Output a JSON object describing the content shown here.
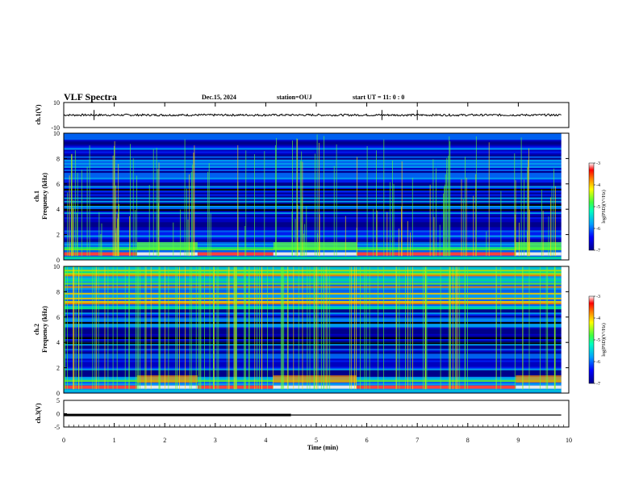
{
  "header": {
    "title": "VLF Spectra",
    "date": "Dec.15, 2024",
    "station": "station=OUJ",
    "start_ut": "start  UT =   11: 0  : 0"
  },
  "chart_data": [
    {
      "type": "line",
      "name": "ch1-waveform",
      "ylabel": "ch.1(V)",
      "ylim": [
        -10,
        10
      ],
      "yticks": [
        "10",
        "-10"
      ],
      "xlim": [
        0,
        10
      ],
      "baseline": 0,
      "spikes": [
        0.6,
        6.3,
        7.0
      ]
    },
    {
      "type": "heatmap",
      "name": "ch1-spectrogram",
      "ylabel": "ch.1\nFrequency (kHz)",
      "ylim": [
        0,
        10
      ],
      "yticks": [
        "0",
        "2",
        "4",
        "6",
        "8",
        "10"
      ],
      "xlim": [
        0,
        9.85
      ],
      "colorbar": {
        "label": "log(PSD)(V²/Hz)",
        "ticks": [
          "-3",
          "-4",
          "-5",
          "-6",
          "-7"
        ],
        "range": [
          -7,
          -3
        ]
      },
      "segments": [
        0,
        1.45,
        2.65,
        4.15,
        5.8,
        8.95,
        9.85
      ]
    },
    {
      "type": "heatmap",
      "name": "ch2-spectrogram",
      "ylabel": "ch.2\nFrequency (kHz)",
      "ylim": [
        0,
        10
      ],
      "yticks": [
        "0",
        "2",
        "4",
        "6",
        "8",
        "10"
      ],
      "xlim": [
        0,
        9.85
      ],
      "colorbar": {
        "label": "log(PSD)(V²/Hz)",
        "ticks": [
          "-3",
          "-4",
          "-5",
          "-6",
          "-7"
        ],
        "range": [
          -7,
          -3
        ]
      },
      "segments": [
        0,
        1.45,
        2.65,
        4.15,
        5.8,
        8.95,
        9.85
      ]
    },
    {
      "type": "line",
      "name": "ch3-signal",
      "ylabel": "ch.3(V)",
      "ylim": [
        -5,
        5
      ],
      "yticks": [
        "5",
        "0",
        "-5"
      ],
      "x": [
        0,
        4.5,
        4.5,
        9.85
      ],
      "y": [
        -0.5,
        -0.5,
        -0.5,
        -0.5
      ],
      "thick_until": 4.5
    }
  ],
  "xaxis": {
    "label": "Time  (min)",
    "ticks": [
      "0",
      "1",
      "2",
      "3",
      "4",
      "5",
      "6",
      "7",
      "8",
      "9",
      "10"
    ]
  }
}
